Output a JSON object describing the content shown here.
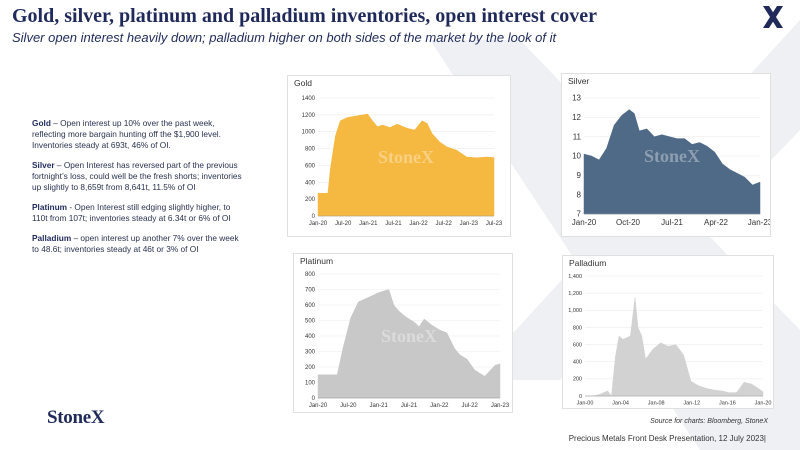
{
  "header": {
    "title": "Gold, silver, platinum and palladium inventories, open interest cover",
    "subtitle": "Silver open interest heavily down; palladium higher on both sides of the market by the look of it"
  },
  "commentary": [
    {
      "metal": "Gold",
      "text": " – Open interest up 10% over the past week, reflecting more bargain hunting off the $1,900 level.  Inventories steady at 693t, 46% of OI."
    },
    {
      "metal": "Silver",
      "text": " – Open Interest has reversed part of the previous fortnight’s loss, could well be the fresh shorts; inventories up slightly to 8,659t from 8,641t, 11.5% of OI"
    },
    {
      "metal": "Platinum",
      "text": "  - Open Interest still edging slightly higher, to 110t from 107t; inventories steady at 6.34t or 6% of OI"
    },
    {
      "metal": "Palladium",
      "text": " – open interest up another 7% over the week to 48.6t; inventories steady at 46t or 3% of OI"
    }
  ],
  "brand": {
    "logo_text": "StoneX",
    "watermark": "StoneX"
  },
  "source": "Source for charts: Bloomberg, StoneX",
  "footer": "Precious Metals Front Desk Presentation, 12 July 2023|",
  "chart_data": [
    {
      "type": "area",
      "title": "Gold",
      "color": "#f5b841",
      "xlabels": [
        "Jan-20",
        "Jul-20",
        "Jan-21",
        "Jul-21",
        "Jan-22",
        "Jul-22",
        "Jan-23",
        "Jul-23"
      ],
      "ylim": [
        0,
        1400
      ],
      "yticks": [
        0,
        200,
        400,
        600,
        800,
        1000,
        1200,
        1400
      ],
      "x": [
        2020.0,
        2020.2,
        2020.25,
        2020.35,
        2020.45,
        2020.6,
        2020.8,
        2021.0,
        2021.1,
        2021.2,
        2021.3,
        2021.45,
        2021.6,
        2021.8,
        2021.95,
        2022.1,
        2022.2,
        2022.3,
        2022.45,
        2022.6,
        2022.8,
        2023.0,
        2023.2,
        2023.4,
        2023.55
      ],
      "y": [
        270,
        270,
        560,
        950,
        1130,
        1170,
        1190,
        1210,
        1130,
        1060,
        1080,
        1050,
        1090,
        1040,
        1020,
        1130,
        1100,
        980,
        880,
        820,
        780,
        700,
        690,
        700,
        693
      ]
    },
    {
      "type": "area",
      "title": "Silver",
      "color": "#4f6a86",
      "xlabels": [
        "Jan-20",
        "Oct-20",
        "Jul-21",
        "Apr-22",
        "Jan-23"
      ],
      "ylim": [
        7,
        13
      ],
      "yticks": [
        7,
        8,
        9,
        10,
        11,
        12,
        13
      ],
      "x": [
        2020.0,
        2020.15,
        2020.3,
        2020.45,
        2020.6,
        2020.75,
        2020.9,
        2021.0,
        2021.1,
        2021.25,
        2021.4,
        2021.55,
        2021.7,
        2021.85,
        2022.0,
        2022.15,
        2022.3,
        2022.45,
        2022.6,
        2022.75,
        2022.9,
        2023.05,
        2023.2,
        2023.35,
        2023.5
      ],
      "y": [
        10.1,
        10.0,
        9.8,
        10.4,
        11.6,
        12.1,
        12.4,
        12.2,
        11.3,
        11.4,
        11.0,
        11.1,
        11.0,
        10.9,
        10.9,
        10.6,
        10.7,
        10.5,
        10.2,
        9.6,
        9.3,
        9.1,
        8.9,
        8.5,
        8.65
      ]
    },
    {
      "type": "area",
      "title": "Platinum",
      "color": "#c8c8c8",
      "xlabels": [
        "Jan-20",
        "Jul-20",
        "Jan-21",
        "Jul-21",
        "Jan-22",
        "Jul-22",
        "Jan-23"
      ],
      "ylim": [
        0,
        800
      ],
      "yticks": [
        0,
        100,
        200,
        300,
        400,
        500,
        600,
        700,
        800
      ],
      "x": [
        2020.0,
        2020.3,
        2020.38,
        2020.5,
        2020.65,
        2020.8,
        2021.0,
        2021.2,
        2021.4,
        2021.5,
        2021.6,
        2021.75,
        2021.9,
        2022.0,
        2022.1,
        2022.25,
        2022.4,
        2022.55,
        2022.7,
        2022.8,
        2022.95,
        2023.1,
        2023.3,
        2023.5,
        2023.6
      ],
      "y": [
        150,
        150,
        150,
        330,
        520,
        620,
        650,
        680,
        700,
        600,
        560,
        520,
        490,
        460,
        510,
        470,
        440,
        420,
        320,
        280,
        250,
        180,
        140,
        210,
        220
      ]
    },
    {
      "type": "area",
      "title": "Palladium",
      "color": "#d2d2d2",
      "xlabels": [
        "Jan-00",
        "Jan-04",
        "Jan-08",
        "Jan-12",
        "Jan-16",
        "Jan-20"
      ],
      "ylim": [
        0,
        1400
      ],
      "yticks": [
        0,
        200,
        400,
        600,
        800,
        1000,
        1200,
        1400
      ],
      "x": [
        2000.0,
        2001.0,
        2002.0,
        2003.0,
        2003.5,
        2004.0,
        2004.5,
        2005.0,
        2006.0,
        2006.6,
        2007.0,
        2007.5,
        2008.0,
        2009.0,
        2010.0,
        2011.0,
        2012.0,
        2013.0,
        2014.0,
        2015.0,
        2016.0,
        2017.0,
        2018.0,
        2019.0,
        2020.0,
        2021.0,
        2022.0,
        2023.0,
        2023.5
      ],
      "y": [
        0,
        0,
        20,
        60,
        0,
        450,
        700,
        660,
        700,
        1150,
        800,
        700,
        430,
        550,
        620,
        580,
        600,
        480,
        170,
        120,
        90,
        70,
        60,
        40,
        40,
        160,
        140,
        80,
        50
      ]
    }
  ]
}
